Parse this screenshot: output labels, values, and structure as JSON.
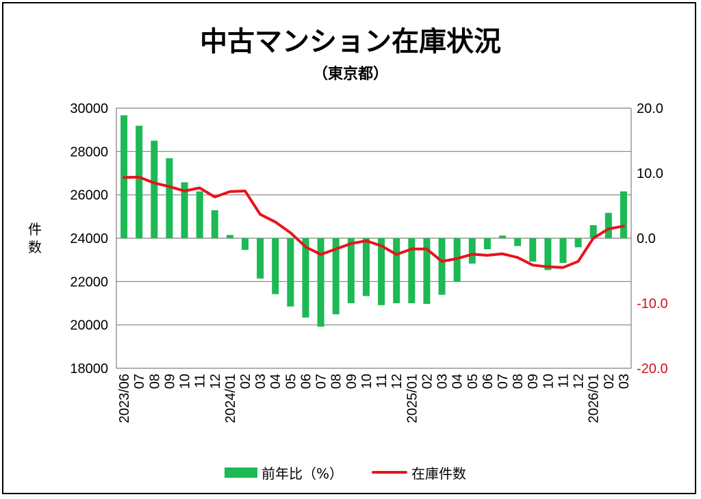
{
  "title": "中古マンション在庫状況",
  "subtitle": "（東京都）",
  "colors": {
    "bar": "#1db954",
    "line": "#e8141c",
    "grid": "#808080",
    "right_axis_text": "#d1121b"
  },
  "chart_data": {
    "type": "bar+line",
    "title": "中古マンション在庫状況",
    "subtitle": "（東京都）",
    "ylabel": "件数",
    "x": [
      "2023/06",
      "07",
      "08",
      "09",
      "10",
      "11",
      "12",
      "2024/01",
      "02",
      "03",
      "04",
      "05",
      "06",
      "07",
      "08",
      "09",
      "10",
      "11",
      "12",
      "2025/01",
      "02",
      "03",
      "04",
      "05",
      "06",
      "07",
      "08",
      "09",
      "10",
      "11",
      "12",
      "2026/01",
      "02",
      "03"
    ],
    "left_axis": {
      "min": 18000,
      "max": 30000,
      "ticks": [
        "18000",
        "20000",
        "22000",
        "24000",
        "26000",
        "28000",
        "30000"
      ]
    },
    "right_axis": {
      "min": -20,
      "max": 20,
      "ticks": [
        "-20.0",
        "-10.0",
        "0.0",
        "10.0",
        "20.0"
      ]
    },
    "grid": true,
    "legend_position": "bottom",
    "series": [
      {
        "name": "前年比（%）",
        "type": "bar",
        "axis": "right",
        "values": [
          18.9,
          17.3,
          15.0,
          12.3,
          8.6,
          7.2,
          4.3,
          0.5,
          -1.8,
          -6.2,
          -8.6,
          -10.5,
          -12.2,
          -13.6,
          -11.7,
          -10.0,
          -8.9,
          -10.3,
          -10.0,
          -10.0,
          -10.1,
          -8.7,
          -6.7,
          -3.9,
          -1.7,
          0.4,
          -1.2,
          -3.6,
          -4.9,
          -3.8,
          -1.4,
          2.0,
          3.9,
          7.2
        ]
      },
      {
        "name": "在庫件数",
        "type": "line",
        "axis": "left",
        "values": [
          26800,
          26820,
          26550,
          26380,
          26180,
          26320,
          25900,
          26150,
          26180,
          25100,
          24750,
          24250,
          23600,
          23250,
          23500,
          23750,
          23880,
          23650,
          23250,
          23500,
          23500,
          22930,
          23060,
          23260,
          23210,
          23280,
          23110,
          22760,
          22680,
          22650,
          22930,
          24000,
          24430,
          24560
        ]
      }
    ]
  },
  "legend": {
    "bar_label": "前年比（%）",
    "line_label": "在庫件数"
  }
}
